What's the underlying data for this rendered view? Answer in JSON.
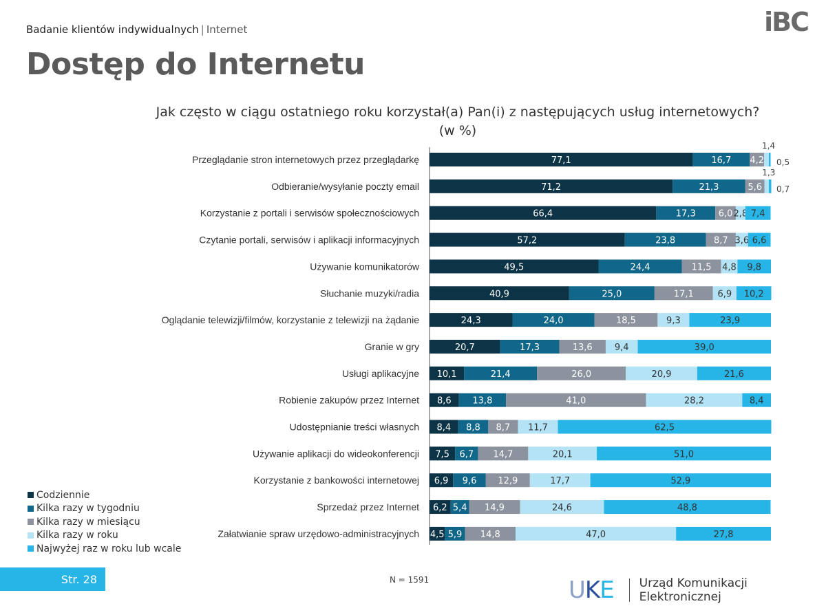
{
  "header": {
    "breadcrumb_main": "Badanie klientów indywidualnych",
    "breadcrumb_separator": "|",
    "breadcrumb_sub": "Internet",
    "title": "Dostęp do Internetu",
    "logo_text": "iBC"
  },
  "question": {
    "line1": "Jak często w ciągu ostatniego roku korzystał(a) Pan(i) z następujących usług internetowych?",
    "line2": "(w %)"
  },
  "chart_data": {
    "type": "bar",
    "orientation": "horizontal-stacked-100",
    "categories": [
      "Przeglądanie stron internetowych przez przeglądarkę",
      "Odbieranie/wysyłanie poczty email",
      "Korzystanie z portali i serwisów społecznościowych",
      "Czytanie portali, serwisów i aplikacji informacyjnych",
      "Używanie komunikatorów",
      "Słuchanie muzyki/radia",
      "Oglądanie telewizji/filmów, korzystanie z telewizji na żądanie",
      "Granie w gry",
      "Usługi aplikacyjne",
      "Robienie zakupów przez Internet",
      "Udostępnianie treści własnych",
      "Używanie aplikacji do wideokonferencji",
      "Korzystanie z bankowości internetowej",
      "Sprzedaż przez Internet",
      "Załatwianie spraw urzędowo-administracyjnych"
    ],
    "series": [
      {
        "name": "Codziennie",
        "color": "#0d3346",
        "values": [
          77.1,
          71.2,
          66.4,
          57.2,
          49.5,
          40.9,
          24.3,
          20.7,
          10.1,
          8.6,
          8.4,
          7.5,
          6.9,
          6.2,
          4.5
        ],
        "labels": [
          "77,1",
          "71,2",
          "66,4",
          "57,2",
          "49,5",
          "40,9",
          "24,3",
          "20,7",
          "10,1",
          "8,6",
          "8,4",
          "7,5",
          "6,9",
          "6,2",
          "4,5"
        ]
      },
      {
        "name": "Kilka razy w tygodniu",
        "color": "#10678a",
        "values": [
          16.7,
          21.3,
          17.3,
          23.8,
          24.4,
          25.0,
          24.0,
          17.3,
          21.4,
          13.8,
          8.8,
          6.7,
          9.6,
          5.4,
          5.9
        ],
        "labels": [
          "16,7",
          "21,3",
          "17,3",
          "23,8",
          "24,4",
          "25,0",
          "24,0",
          "17,3",
          "21,4",
          "13,8",
          "8,8",
          "6,7",
          "9,6",
          "5,4",
          "5,9"
        ]
      },
      {
        "name": "Kilka razy w miesiącu",
        "color": "#8c929e",
        "values": [
          4.2,
          5.6,
          6.0,
          8.7,
          11.5,
          17.1,
          18.5,
          13.6,
          26.0,
          41.0,
          8.7,
          14.7,
          12.9,
          14.9,
          14.8
        ],
        "labels": [
          "4,2",
          "5,6",
          "6,0",
          "8,7",
          "11,5",
          "17,1",
          "18,5",
          "13,6",
          "26,0",
          "41,0",
          "8,7",
          "14,7",
          "12,9",
          "14,9",
          "14,8"
        ]
      },
      {
        "name": "Kilka razy w roku",
        "color": "#b3e3f5",
        "values": [
          1.4,
          1.3,
          2.8,
          3.6,
          4.8,
          6.9,
          9.3,
          9.4,
          20.9,
          28.2,
          11.7,
          20.1,
          17.7,
          24.6,
          47.0
        ],
        "labels": [
          "1,4",
          "1,3",
          "2,8",
          "3,6",
          "4,8",
          "6,9",
          "9,3",
          "9,4",
          "20,9",
          "28,2",
          "11,7",
          "20,1",
          "17,7",
          "24,6",
          "47,0"
        ]
      },
      {
        "name": "Najwyżej raz w roku lub wcale",
        "color": "#27b4e6",
        "values": [
          0.5,
          0.7,
          7.4,
          6.6,
          9.8,
          10.2,
          23.9,
          39.0,
          21.6,
          8.4,
          62.5,
          51.0,
          52.9,
          48.8,
          27.8
        ],
        "labels": [
          "0,5",
          "0,7",
          "7,4",
          "6,6",
          "9,8",
          "10,2",
          "23,9",
          "39,0",
          "21,6",
          "8,4",
          "62,5",
          "51,0",
          "52,9",
          "48,8",
          "27,8"
        ]
      }
    ],
    "outside_labels": [
      {
        "row": 0,
        "series": 3,
        "position": "above"
      },
      {
        "row": 0,
        "series": 4,
        "position": "right"
      },
      {
        "row": 1,
        "series": 3,
        "position": "above"
      },
      {
        "row": 1,
        "series": 4,
        "position": "right"
      }
    ],
    "xlim": [
      0,
      100
    ],
    "legend_position": "bottom-left"
  },
  "footer": {
    "page_label": "Str. 28",
    "base": "N = 1591",
    "org_logo": "UKE",
    "org_name": "Urząd Komunikacji Elektronicznej"
  }
}
